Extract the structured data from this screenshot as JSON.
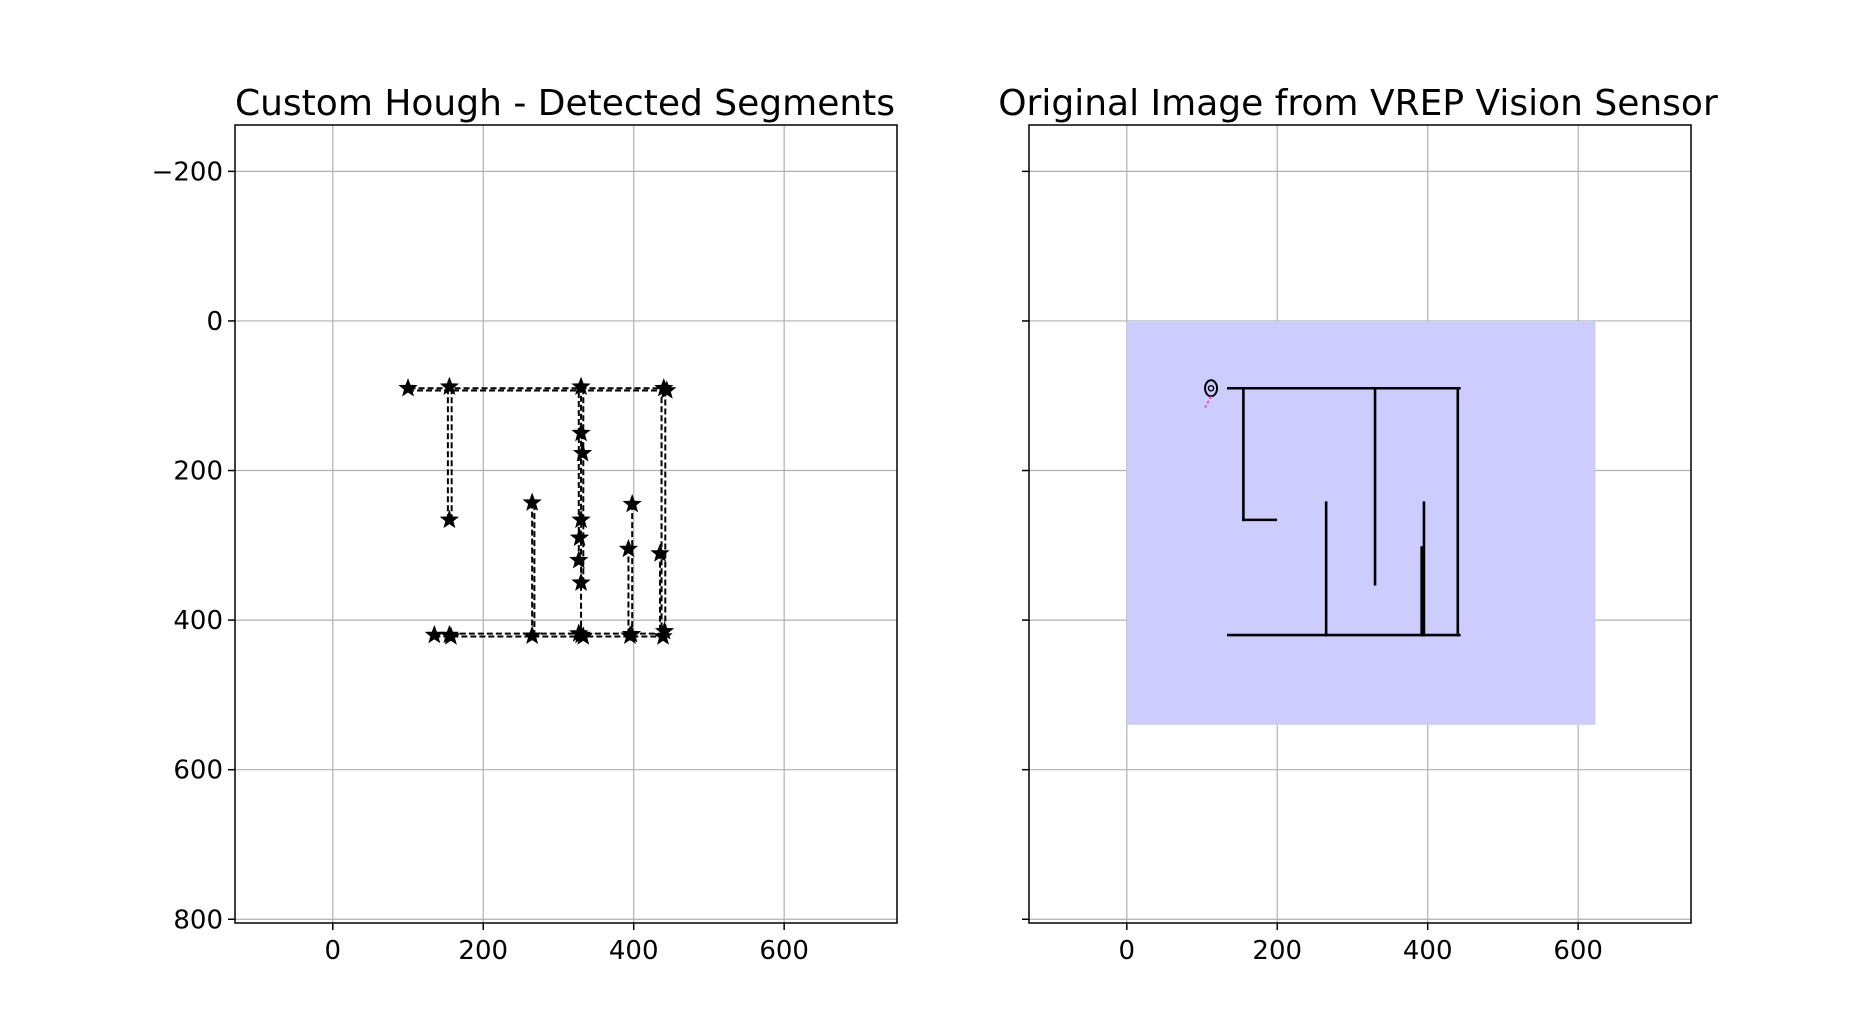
{
  "chart_data": [
    {
      "type": "line",
      "title": "Custom Hough - Detected Segments",
      "xlabel": "",
      "ylabel": "",
      "xlim": [
        -130,
        750
      ],
      "ylim": [
        805,
        -262
      ],
      "y_inverted": true,
      "grid": true,
      "xticks": [
        0,
        200,
        400,
        600
      ],
      "yticks": [
        -200,
        0,
        200,
        400,
        600,
        800
      ],
      "tick_labels_x": [
        "0",
        "200",
        "400",
        "600"
      ],
      "tick_labels_y": [
        "−200",
        "0",
        "200",
        "400",
        "600",
        "800"
      ],
      "line_style": "dashed",
      "marker": "star",
      "color": "#000000",
      "segments": [
        [
          [
            102,
            90
          ],
          [
            440,
            90
          ]
        ],
        [
          [
            100,
            93
          ],
          [
            437,
            93
          ]
        ],
        [
          [
            158,
            90
          ],
          [
            158,
            266
          ]
        ],
        [
          [
            153,
            90
          ],
          [
            153,
            268
          ]
        ],
        [
          [
            133,
            418
          ],
          [
            440,
            418
          ]
        ],
        [
          [
            135,
            422
          ],
          [
            437,
            422
          ]
        ],
        [
          [
            265,
            243
          ],
          [
            265,
            420
          ]
        ],
        [
          [
            268,
            245
          ],
          [
            268,
            421
          ]
        ],
        [
          [
            330,
            88
          ],
          [
            330,
            420
          ]
        ],
        [
          [
            333,
            90
          ],
          [
            333,
            350
          ]
        ],
        [
          [
            327,
            95
          ],
          [
            327,
            320
          ]
        ],
        [
          [
            330,
            150
          ],
          [
            333,
            175
          ]
        ],
        [
          [
            393,
            303
          ],
          [
            393,
            420
          ]
        ],
        [
          [
            398,
            245
          ],
          [
            398,
            421
          ]
        ],
        [
          [
            437,
            90
          ],
          [
            437,
            420
          ]
        ],
        [
          [
            442,
            93
          ],
          [
            442,
            415
          ]
        ],
        [
          [
            435,
            310
          ],
          [
            435,
            420
          ]
        ]
      ],
      "points": [
        [
          100,
          90
        ],
        [
          155,
          88
        ],
        [
          330,
          88
        ],
        [
          440,
          90
        ],
        [
          444,
          93
        ],
        [
          155,
          266
        ],
        [
          330,
          150
        ],
        [
          332,
          177
        ],
        [
          330,
          266
        ],
        [
          328,
          290
        ],
        [
          327,
          320
        ],
        [
          330,
          350
        ],
        [
          265,
          243
        ],
        [
          398,
          245
        ],
        [
          393,
          305
        ],
        [
          435,
          311
        ],
        [
          135,
          420
        ],
        [
          155,
          420
        ],
        [
          157,
          422
        ],
        [
          265,
          421
        ],
        [
          330,
          420
        ],
        [
          327,
          418
        ],
        [
          333,
          422
        ],
        [
          395,
          421
        ],
        [
          397,
          419
        ],
        [
          439,
          422
        ],
        [
          441,
          415
        ]
      ]
    },
    {
      "type": "image",
      "title": "Original Image from VREP Vision Sensor",
      "xlabel": "",
      "ylabel": "",
      "xlim": [
        -130,
        750
      ],
      "ylim": [
        805,
        -262
      ],
      "y_inverted": true,
      "grid": true,
      "xticks": [
        0,
        200,
        400,
        600
      ],
      "yticks": [
        -200,
        0,
        200,
        400,
        600,
        800
      ],
      "tick_labels_x": [
        "0",
        "200",
        "400",
        "600"
      ],
      "image_extent": [
        0,
        623,
        0,
        540
      ],
      "background_color": "#ccccff",
      "wall_color": "#000000",
      "robot_color": "#000000",
      "robot_heading_color": "#ff33cc",
      "walls": [
        [
          [
            135,
            90
          ],
          [
            442,
            90
          ]
        ],
        [
          [
            155,
            90
          ],
          [
            155,
            266
          ]
        ],
        [
          [
            155,
            266
          ],
          [
            198,
            266
          ]
        ],
        [
          [
            330,
            90
          ],
          [
            330,
            352
          ]
        ],
        [
          [
            440,
            90
          ],
          [
            440,
            420
          ]
        ],
        [
          [
            135,
            420
          ],
          [
            442,
            420
          ]
        ],
        [
          [
            265,
            243
          ],
          [
            265,
            420
          ]
        ],
        [
          [
            395,
            243
          ],
          [
            395,
            420
          ]
        ],
        [
          [
            392,
            303
          ],
          [
            392,
            420
          ]
        ]
      ],
      "robot": {
        "x": 112,
        "y": 90,
        "heading": [
          103,
          118
        ]
      }
    }
  ]
}
